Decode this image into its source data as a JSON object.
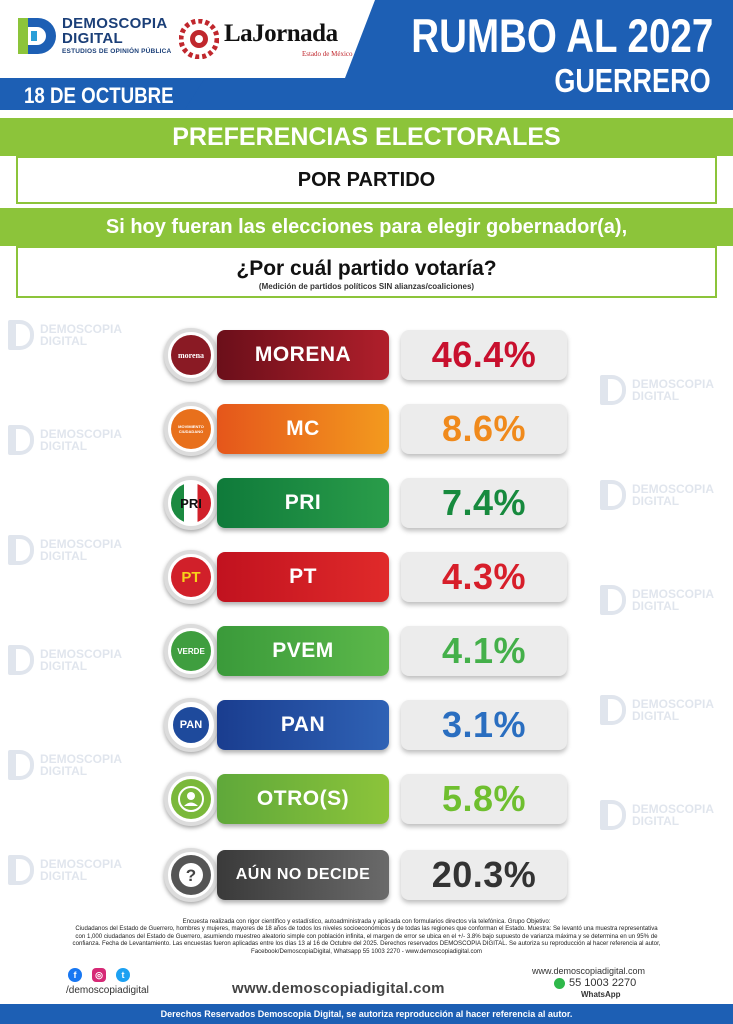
{
  "header": {
    "brand_line1": "DEMOSCOPIA",
    "brand_line2": "DIGITAL",
    "brand_sub": "ESTUDIOS DE OPINIÓN PÚBLICA",
    "partner_name": "LaJornada",
    "partner_sub": "Estado de México",
    "date": "18 DE OCTUBRE",
    "title": "RUMBO AL 2027",
    "subtitle": "GUERRERO"
  },
  "headline": {
    "section_title": "PREFERENCIAS ELECTORALES",
    "section_subtitle": "POR PARTIDO",
    "question_line1": "Si hoy fueran las elecciones para elegir gobernador(a),",
    "question_line2": "¿Por cuál partido votaría?",
    "note": "(Medición de partidos políticos SIN alianzas/coaliciones)"
  },
  "watermark_text": [
    "DEMOSCOPIA",
    "DIGITAL"
  ],
  "parties": [
    {
      "name": "MORENA",
      "value": "46.4%",
      "emblem": "morena",
      "color_from": "#6b0f1a",
      "color_to": "#b01f2b",
      "value_color": "#c8102e",
      "emblem_ring": "#8a1a24"
    },
    {
      "name": "MC",
      "value": "8.6%",
      "emblem": "MOVIMIENTO CIUDADANO",
      "color_from": "#e5561b",
      "color_to": "#f39a1e",
      "value_color": "#f08a1c",
      "emblem_ring": "#e8701c"
    },
    {
      "name": "PRI",
      "value": "7.4%",
      "emblem": "PRI",
      "color_from": "#0f7a3a",
      "color_to": "#2a9d4a",
      "value_color": "#178a3e",
      "emblem_ring": "#1b8a40"
    },
    {
      "name": "PT",
      "value": "4.3%",
      "emblem": "PT",
      "color_from": "#c1121f",
      "color_to": "#e02a2a",
      "value_color": "#d71e2a",
      "emblem_ring": "#d1202a"
    },
    {
      "name": "PVEM",
      "value": "4.1%",
      "emblem": "VERDE",
      "color_from": "#3a9a3a",
      "color_to": "#5cb84a",
      "value_color": "#44b04a",
      "emblem_ring": "#3f9e3f"
    },
    {
      "name": "PAN",
      "value": "3.1%",
      "emblem": "PAN",
      "color_from": "#1a3d8f",
      "color_to": "#2f62b5",
      "value_color": "#2a6ec0",
      "emblem_ring": "#1e4a9c"
    },
    {
      "name": "OTRO(S)",
      "value": "5.8%",
      "emblem": "person-icon",
      "color_from": "#5fa83a",
      "color_to": "#8cc43a",
      "value_color": "#6fbf2f",
      "emblem_ring": "#7ab83a"
    },
    {
      "name": "AÚN NO DECIDE",
      "value": "20.3%",
      "emblem": "question-icon",
      "color_from": "#3a3a3a",
      "color_to": "#6a6a6a",
      "value_color": "#333333",
      "emblem_ring": "#555555"
    }
  ],
  "footer": {
    "methodology_1": "Encuesta realizada con rigor científico y estadístico, autoadministrada y aplicada con formularios directos vía telefónica. Grupo Objetivo:",
    "methodology_2": "Ciudadanos del Estado de Guerrero, hombres y mujeres, mayores de 18 años de todos los niveles socioeconómicos y de todas las regiones que conforman el Estado. Muestra: Se levantó una muestra representativa",
    "methodology_3": "con 1,000 ciudadanos del Estado de Guerrero, asumiendo muestreo aleatorio simple con población infinita, el margen de error se ubica en el +/- 3.8% bajo supuesto de varianza máxima y se determina en un 95% de",
    "methodology_4": "confianza. Fecha de Levantamiento. Las encuestas fueron aplicadas entre los días 13 al 16 de Octubre del 2025. Derechos reservados DEMOSCOPIA DIGITAL. Se autoriza su reproducción al hacer referencia al autor,",
    "methodology_5": "Facebook/DemoscopiaDigital, Whatsapp 55 1003 2270 - www.demoscopiadigital.com",
    "social_handle": "/demoscopiadigital",
    "website": "www.demoscopiadigital.com",
    "contact_web": "www.demoscopiadigital.com",
    "whatsapp_number": "55 1003 2270",
    "whatsapp_label": "WhatsApp",
    "rights": "Derechos Reservados Demoscopia Digital, se autoriza reproducción al hacer referencia al autor."
  },
  "colors": {
    "brand_blue": "#1d5fb4",
    "brand_green": "#8cc43a"
  }
}
